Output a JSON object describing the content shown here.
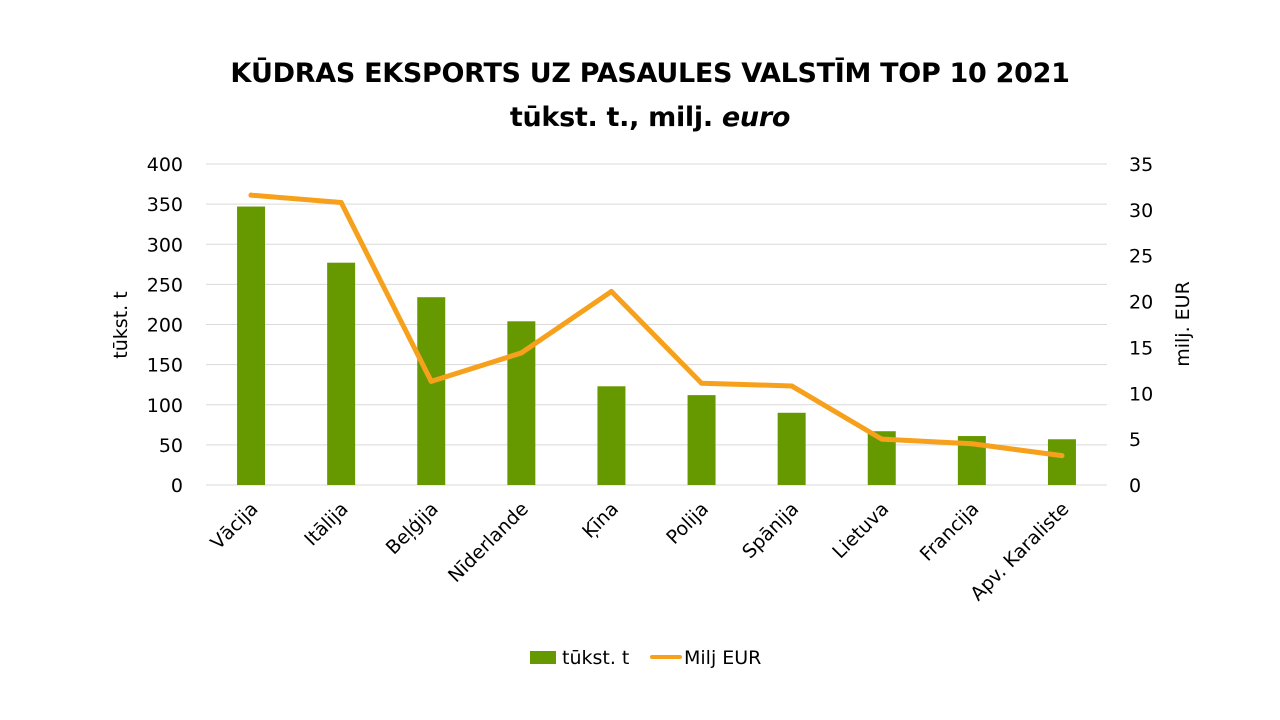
{
  "title": {
    "line1": "KŪDRAS EKSPORTS UZ PASAULES VALSTĪM TOP 10 2021",
    "line2_prefix": "tūkst. t., milj. ",
    "line2_emphasis": "euro"
  },
  "colors": {
    "bars": "#669900",
    "line": "#F7A01B",
    "grid": "#D9D9D9"
  },
  "chart_data": {
    "type": "bar",
    "title": "KŪDRAS EKSPORTS UZ PASAULES VALSTĪM TOP 10 2021 tūkst. t., milj. euro",
    "categories": [
      "Vācija",
      "Itālija",
      "Beļģija",
      "Nīderlande",
      "Ķīna",
      "Polija",
      "Spānija",
      "Lietuva",
      "Francija",
      "Apv. Karaliste"
    ],
    "series": [
      {
        "name": "tūkst. t",
        "type": "bar",
        "axis": "left",
        "values": [
          347,
          277,
          234,
          204,
          123,
          112,
          90,
          67,
          61,
          57
        ]
      },
      {
        "name": "Milj EUR",
        "type": "line",
        "axis": "right",
        "values": [
          31.6,
          30.8,
          11.3,
          14.4,
          21.1,
          11.1,
          10.8,
          5.0,
          4.5,
          3.2
        ]
      }
    ],
    "ylabel": "tūkst. t",
    "y2label": "milj. EUR",
    "ylim": [
      0,
      400
    ],
    "yticks": [
      0,
      50,
      100,
      150,
      200,
      250,
      300,
      350,
      400
    ],
    "y2lim": [
      0,
      35
    ],
    "y2ticks": [
      0,
      5,
      10,
      15,
      20,
      25,
      30,
      35
    ],
    "grid": true,
    "legend_position": "bottom"
  }
}
